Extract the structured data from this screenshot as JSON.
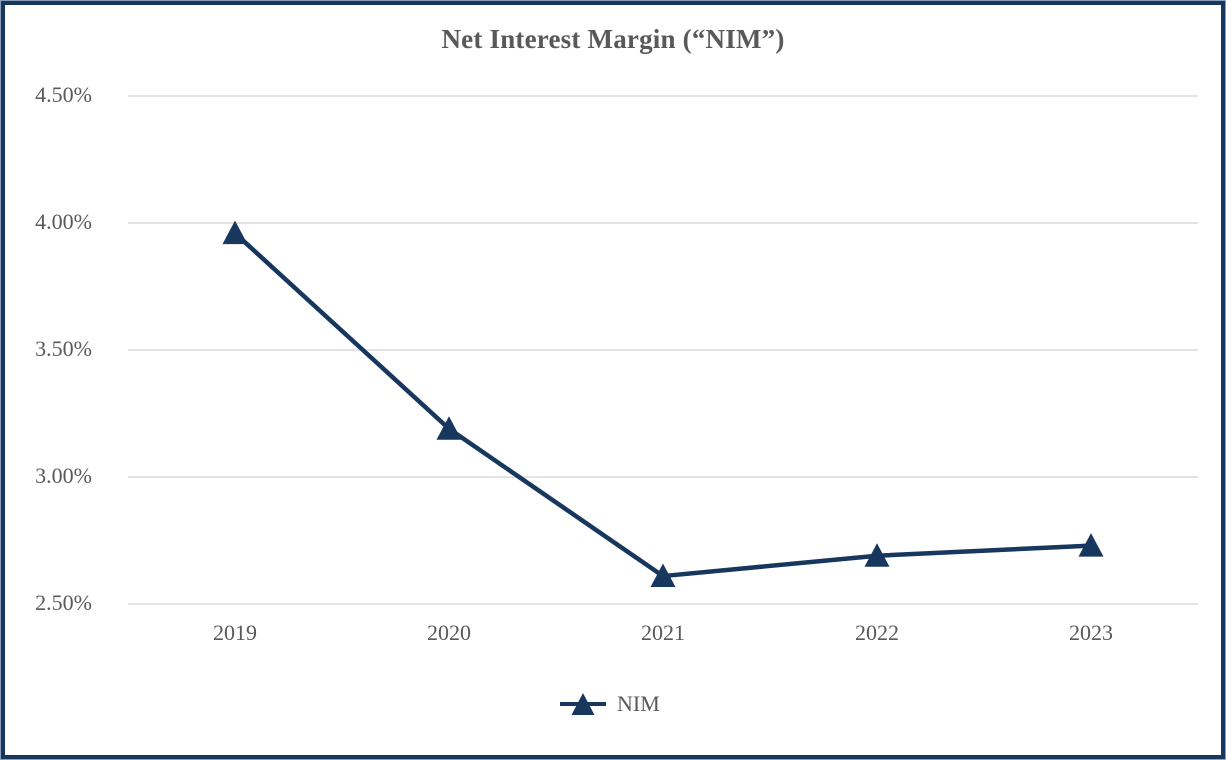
{
  "colors": {
    "line": "#17375E",
    "marker": "#17375E",
    "frame_border": "#17375E",
    "gridline": "#E3E3E3",
    "text": "#595959"
  },
  "legend": {
    "label": "NIM"
  },
  "chart_data": {
    "type": "line",
    "title": "Net Interest Margin (“NIM”)",
    "categories": [
      "2019",
      "2020",
      "2021",
      "2022",
      "2023"
    ],
    "series": [
      {
        "name": "NIM",
        "values": [
          3.96,
          3.19,
          2.61,
          2.69,
          2.73
        ]
      }
    ],
    "xlabel": "",
    "ylabel": "",
    "ylim": [
      2.5,
      4.5
    ],
    "ytick_step": 0.5,
    "ytick_labels_top_to_bottom": [
      "4.50%",
      "4.00%",
      "3.50%",
      "3.00%",
      "2.50%"
    ],
    "grid": true,
    "legend_position": "bottom-center",
    "marker_shape": "triangle-up"
  }
}
